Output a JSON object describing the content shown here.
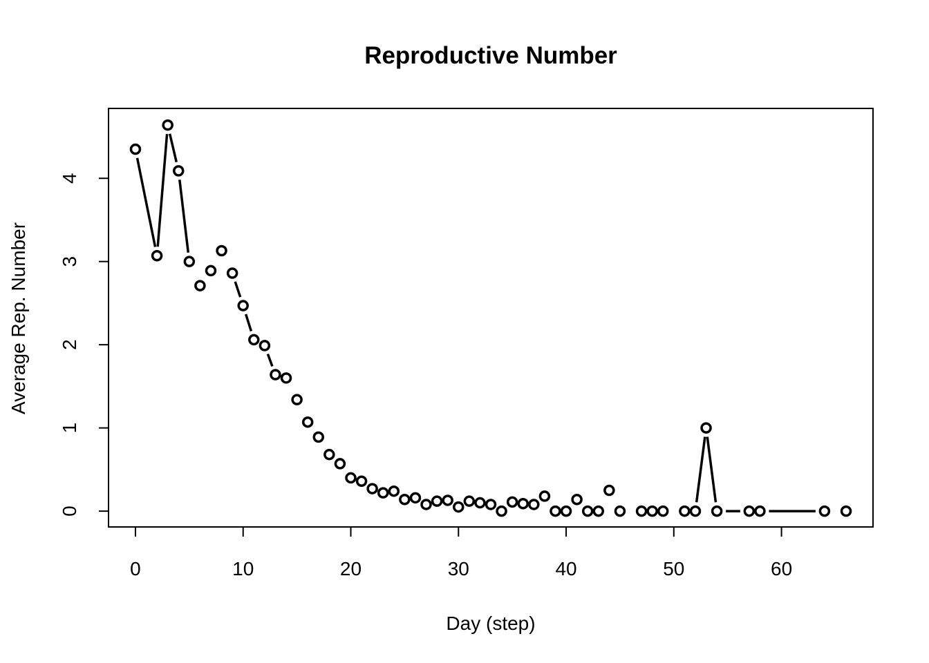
{
  "chart_data": {
    "type": "line",
    "marker": "open-circle",
    "line_style": "solid-with-gaps",
    "title": "Reproductive Number",
    "xlabel": "Day (step)",
    "ylabel": "Average Rep. Number",
    "xlim": [
      -2.5,
      68.5
    ],
    "ylim": [
      -0.19,
      4.84
    ],
    "xticks": [
      0,
      10,
      20,
      30,
      40,
      50,
      60
    ],
    "yticks": [
      0,
      1,
      2,
      3,
      4
    ],
    "grid": false,
    "legend": "none",
    "x": [
      0,
      2,
      3,
      4,
      5,
      6,
      7,
      8,
      9,
      10,
      11,
      12,
      13,
      14,
      15,
      16,
      17,
      18,
      19,
      20,
      21,
      22,
      23,
      24,
      25,
      26,
      27,
      28,
      29,
      30,
      31,
      32,
      33,
      34,
      35,
      36,
      37,
      38,
      39,
      40,
      41,
      42,
      43,
      44,
      45,
      47,
      48,
      49,
      51,
      52,
      53,
      54,
      57,
      58,
      64,
      66
    ],
    "y": [
      4.35,
      3.07,
      4.64,
      4.09,
      3.0,
      2.71,
      2.89,
      3.13,
      2.86,
      2.47,
      2.06,
      1.99,
      1.64,
      1.6,
      1.34,
      1.07,
      0.89,
      0.68,
      0.57,
      0.4,
      0.36,
      0.27,
      0.22,
      0.24,
      0.14,
      0.16,
      0.08,
      0.12,
      0.13,
      0.05,
      0.12,
      0.1,
      0.08,
      0.0,
      0.11,
      0.09,
      0.08,
      0.18,
      0.0,
      0.0,
      0.14,
      0.0,
      0.0,
      0.25,
      0.0,
      0.0,
      0.0,
      0.0,
      0.0,
      0.0,
      1.0,
      0.0,
      0.0,
      0.0,
      0.0,
      0.0
    ],
    "connected_segments": [
      [
        0,
        2
      ],
      [
        2,
        3
      ],
      [
        3,
        4
      ],
      [
        4,
        5
      ],
      [
        9,
        10
      ],
      [
        10,
        11
      ],
      [
        12,
        13
      ],
      [
        52,
        53
      ],
      [
        53,
        54
      ],
      [
        54,
        57
      ],
      [
        58,
        64
      ]
    ]
  }
}
